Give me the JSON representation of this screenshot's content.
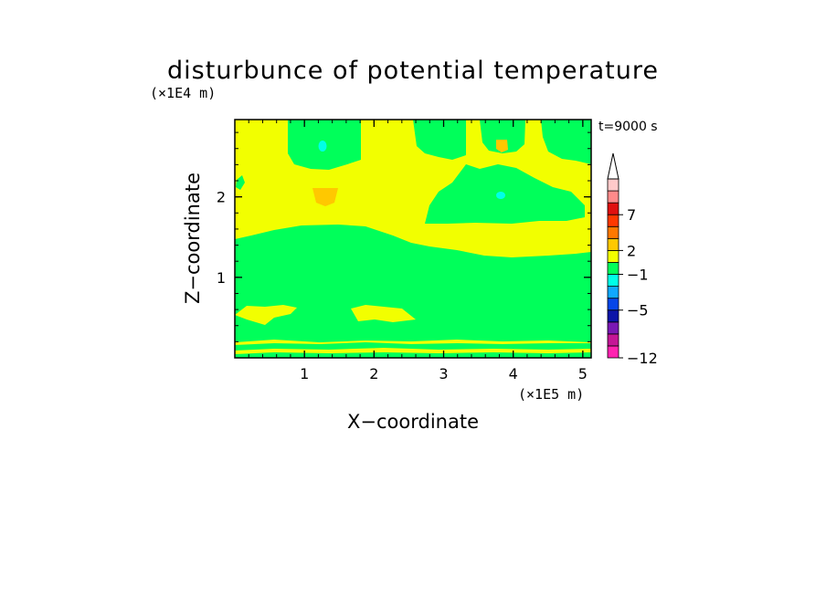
{
  "chart_data": {
    "type": "heatmap",
    "title": "disturbunce of potential temperature",
    "xlabel": "X−coordinate",
    "ylabel": "Z−coordinate",
    "x_unit": "(×1E5 m)",
    "y_unit": "(×1E4 m)",
    "time_label": "t=9000 s",
    "xlim": [
      0,
      5.12
    ],
    "ylim": [
      0,
      2.96
    ],
    "x_ticks": [
      1,
      2,
      3,
      4,
      5
    ],
    "y_ticks": [
      1,
      2
    ],
    "colorbar": {
      "extend": "max",
      "colors": [
        "#ff22b0",
        "#c41696",
        "#7a18b4",
        "#0c14a8",
        "#0646e8",
        "#10a8ff",
        "#00ffe8",
        "#00ff5a",
        "#f2ff00",
        "#ffc800",
        "#ff7800",
        "#ff3800",
        "#e01010",
        "#ff8a8a",
        "#ffcaca"
      ],
      "tick_labels": [
        {
          "value": "−12",
          "boundary": 0
        },
        {
          "value": "−5",
          "boundary": 4
        },
        {
          "value": "−1",
          "boundary": 7
        },
        {
          "value": "2",
          "boundary": 9
        },
        {
          "value": "7",
          "boundary": 12
        }
      ]
    },
    "field": {
      "background_level": "yellow",
      "levels_present": [
        "#00ff5a",
        "#f2ff00",
        "#ffc800",
        "#00ffe8"
      ],
      "note_regions": [
        {
          "level": "green",
          "x": [
            0.0,
            5.12
          ],
          "z": [
            0.15,
            0.19
          ]
        },
        {
          "level": "green",
          "x": [
            0.0,
            5.12
          ],
          "z": [
            0.55,
            1.55
          ]
        },
        {
          "level": "green",
          "x": [
            0.75,
            1.7
          ],
          "z": [
            2.4,
            2.96
          ]
        },
        {
          "level": "green",
          "x": [
            2.6,
            3.3
          ],
          "z": [
            2.6,
            2.96
          ]
        },
        {
          "level": "green",
          "x": [
            3.5,
            4.3
          ],
          "z": [
            2.6,
            2.96
          ]
        },
        {
          "level": "green",
          "x": [
            4.4,
            5.12
          ],
          "z": [
            2.5,
            2.96
          ]
        },
        {
          "level": "green",
          "x": [
            2.7,
            5.0
          ],
          "z": [
            1.7,
            2.4
          ]
        },
        {
          "level": "orange",
          "x": [
            1.1,
            1.5
          ],
          "z": [
            1.9,
            2.1
          ]
        },
        {
          "level": "orange",
          "x": [
            3.75,
            3.9
          ],
          "z": [
            2.58,
            2.7
          ]
        },
        {
          "level": "cyan",
          "x": [
            1.24,
            1.34
          ],
          "z": [
            2.57,
            2.72
          ]
        },
        {
          "level": "cyan",
          "x": [
            3.76,
            3.9
          ],
          "z": [
            1.98,
            2.06
          ]
        }
      ]
    }
  }
}
